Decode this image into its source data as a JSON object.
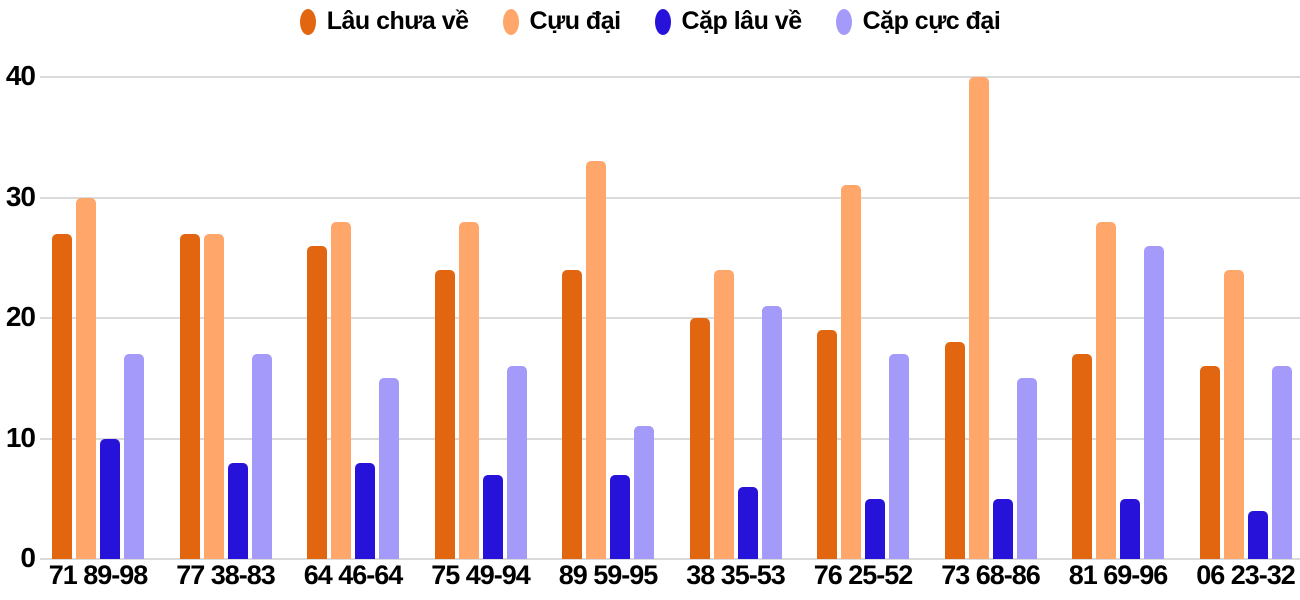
{
  "chart_data": {
    "type": "bar",
    "title": "",
    "xlabel": "",
    "ylabel": "",
    "categories": [
      "71 89-98",
      "77 38-83",
      "64 46-64",
      "75 49-94",
      "89 59-95",
      "38 35-53",
      "76 25-52",
      "73 68-86",
      "81 69-96",
      "06 23-32"
    ],
    "series": [
      {
        "name": "Lâu chưa về",
        "color": "#E26510",
        "values": [
          27,
          27,
          26,
          24,
          24,
          20,
          19,
          18,
          17,
          16
        ]
      },
      {
        "name": "Cựu đại",
        "color": "#FFA66A",
        "values": [
          30,
          27,
          28,
          28,
          33,
          24,
          31,
          40,
          28,
          24
        ]
      },
      {
        "name": "Cặp lâu về",
        "color": "#2712D9",
        "values": [
          10,
          8,
          8,
          7,
          7,
          6,
          5,
          5,
          5,
          4
        ]
      },
      {
        "name": "Cặp cực đại",
        "color": "#A49AFA",
        "values": [
          17,
          17,
          15,
          16,
          11,
          21,
          17,
          15,
          26,
          16
        ]
      }
    ],
    "ylim": [
      0,
      40
    ],
    "yticks": [
      0,
      10,
      20,
      30,
      40
    ],
    "grid": true,
    "legend_position": "top"
  },
  "colors": {
    "grid": "#DADADA",
    "axis_text": "#000000",
    "background": "#FFFFFF"
  }
}
